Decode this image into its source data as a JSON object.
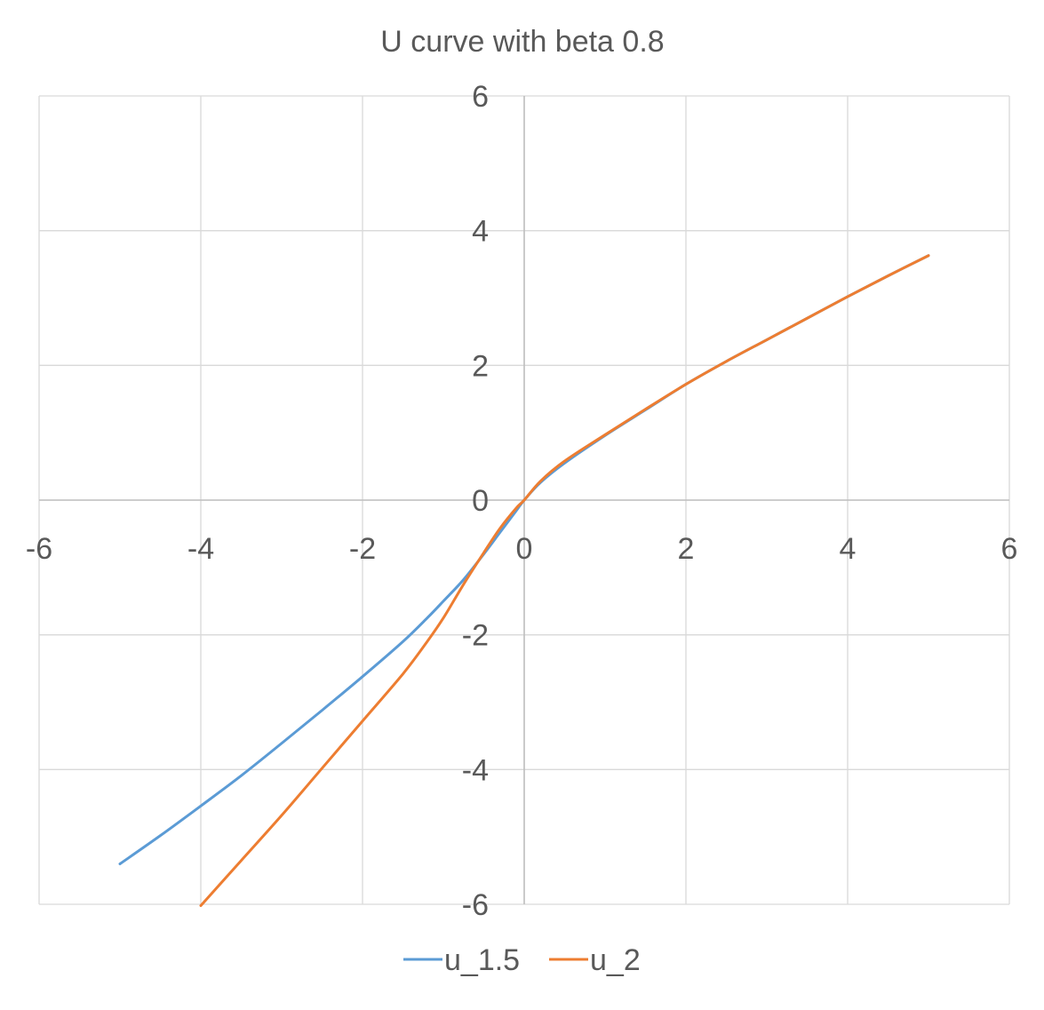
{
  "chart_data": {
    "type": "line",
    "title": "U curve with beta 0.8",
    "xlabel": "",
    "ylabel": "",
    "xlim": [
      -6,
      6
    ],
    "ylim": [
      -6,
      6
    ],
    "x_ticks": [
      "-6",
      "-4",
      "-2",
      "0",
      "2",
      "4",
      "6"
    ],
    "y_ticks": [
      "-6",
      "-4",
      "-2",
      "0",
      "2",
      "4",
      "6"
    ],
    "grid": true,
    "legend_position": "bottom",
    "series": [
      {
        "name": "u_1.5",
        "color": "#5B9BD5",
        "points": [
          [
            -5,
            -5.4
          ],
          [
            -4.5,
            -4.98
          ],
          [
            -4,
            -4.54
          ],
          [
            -3.5,
            -4.09
          ],
          [
            -3,
            -3.61
          ],
          [
            -2.5,
            -3.12
          ],
          [
            -2,
            -2.62
          ],
          [
            -1.5,
            -2.1
          ],
          [
            -1.2,
            -1.75
          ],
          [
            -1,
            -1.5
          ],
          [
            -0.75,
            -1.18
          ],
          [
            -0.5,
            -0.8
          ],
          [
            -0.3,
            -0.48
          ],
          [
            -0.1,
            -0.16
          ],
          [
            0,
            0
          ],
          [
            0.2,
            0.26
          ],
          [
            0.5,
            0.55
          ],
          [
            1,
            0.96
          ],
          [
            1.5,
            1.34
          ],
          [
            2,
            1.72
          ],
          [
            2.5,
            2.06
          ],
          [
            3,
            2.38
          ],
          [
            3.5,
            2.7
          ],
          [
            4,
            3.02
          ],
          [
            4.5,
            3.33
          ],
          [
            5,
            3.63
          ]
        ]
      },
      {
        "name": "u_2",
        "color": "#ED7D31",
        "points": [
          [
            -4,
            -6.02
          ],
          [
            -3.5,
            -5.35
          ],
          [
            -3,
            -4.68
          ],
          [
            -2.5,
            -3.98
          ],
          [
            -2,
            -3.28
          ],
          [
            -1.5,
            -2.58
          ],
          [
            -1.2,
            -2.1
          ],
          [
            -1,
            -1.75
          ],
          [
            -0.75,
            -1.25
          ],
          [
            -0.5,
            -0.78
          ],
          [
            -0.3,
            -0.42
          ],
          [
            -0.1,
            -0.12
          ],
          [
            0,
            0
          ],
          [
            0.2,
            0.28
          ],
          [
            0.5,
            0.58
          ],
          [
            1,
            0.97
          ],
          [
            1.5,
            1.35
          ],
          [
            2,
            1.72
          ],
          [
            2.5,
            2.06
          ],
          [
            3,
            2.38
          ],
          [
            3.5,
            2.7
          ],
          [
            4,
            3.02
          ],
          [
            4.5,
            3.33
          ],
          [
            5,
            3.63
          ]
        ]
      }
    ]
  }
}
